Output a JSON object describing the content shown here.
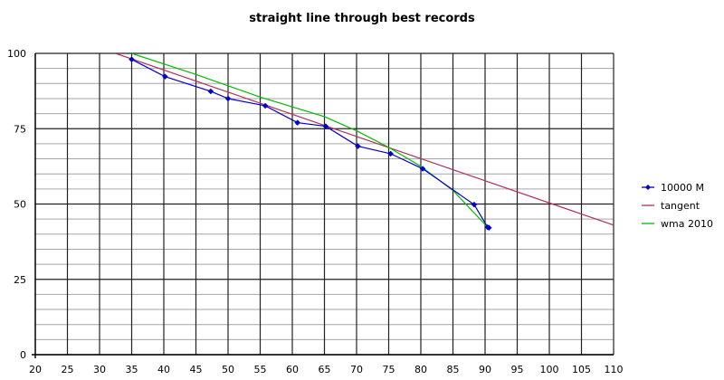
{
  "chart_data": {
    "type": "line",
    "title": "straight line through best records",
    "xlabel": "",
    "ylabel": "",
    "xlim": [
      20,
      110
    ],
    "ylim": [
      0,
      100
    ],
    "x_ticks": [
      20,
      25,
      30,
      35,
      40,
      45,
      50,
      55,
      60,
      65,
      70,
      75,
      80,
      85,
      90,
      95,
      100,
      105,
      110
    ],
    "y_ticks": [
      0,
      25,
      50,
      75,
      100
    ],
    "y_minor_step": 5,
    "grid": true,
    "legend_position": "right",
    "series": [
      {
        "name": "10000 M",
        "color": "#0000cc",
        "marker": "diamond",
        "points": [
          [
            35,
            98
          ],
          [
            40.2,
            92.3
          ],
          [
            47.3,
            87.4
          ],
          [
            50,
            85
          ],
          [
            55.8,
            82.6
          ],
          [
            60.8,
            77
          ],
          [
            65.2,
            75.8
          ],
          [
            70.2,
            69.2
          ],
          [
            75.3,
            66.7
          ],
          [
            80.3,
            61.7
          ],
          [
            88.3,
            49.8
          ],
          [
            90.4,
            42.3
          ],
          [
            90.6,
            42.1
          ]
        ]
      },
      {
        "name": "tangent",
        "color": "#b03060",
        "marker": "none",
        "points": [
          [
            32.5,
            100
          ],
          [
            110,
            43
          ]
        ]
      },
      {
        "name": "wma 2010",
        "color": "#00bb00",
        "marker": "none",
        "points": [
          [
            35,
            100
          ],
          [
            45,
            93
          ],
          [
            55,
            85.5
          ],
          [
            65,
            79
          ],
          [
            70,
            74.3
          ],
          [
            75,
            68.8
          ],
          [
            80,
            62.5
          ],
          [
            85,
            54.5
          ],
          [
            90.4,
            42.3
          ]
        ]
      }
    ]
  }
}
